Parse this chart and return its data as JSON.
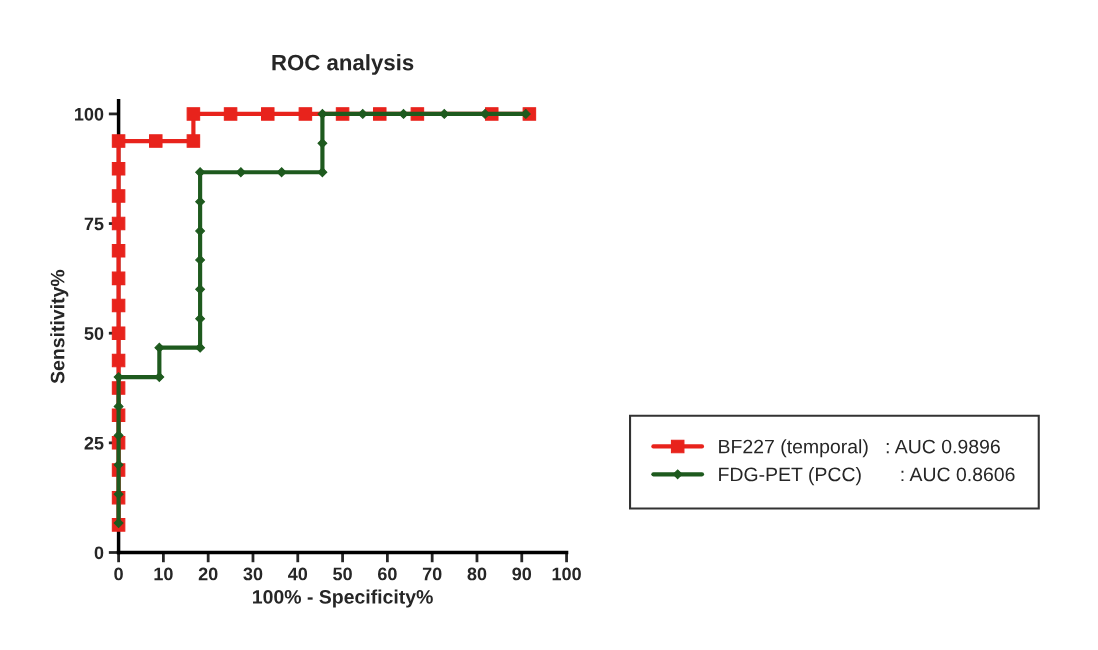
{
  "chart_data": {
    "type": "line",
    "title": "ROC analysis",
    "xlabel": "100% - Specificity%",
    "ylabel": "Sensitivity%",
    "xlim": [
      0,
      100
    ],
    "xticks": [
      0,
      10,
      20,
      30,
      40,
      50,
      60,
      70,
      80,
      90,
      100
    ],
    "ylim": [
      0,
      103
    ],
    "yticks": [
      0,
      25,
      50,
      75,
      100
    ],
    "grid": false,
    "legend": "right",
    "series": [
      {
        "name": "BF227 (temporal)   : AUC 0.9896",
        "color": "#e8231c",
        "marker": "square",
        "x": [
          0,
          0,
          0,
          0,
          0,
          0,
          0,
          0,
          0,
          0,
          0,
          0,
          0,
          0,
          0,
          8.3,
          16.7,
          16.7,
          25,
          33.3,
          41.7,
          50,
          58.3,
          66.7,
          83.3,
          91.7
        ],
        "values": [
          6.3,
          12.5,
          18.8,
          25,
          31.3,
          37.5,
          43.8,
          50,
          56.3,
          62.5,
          68.8,
          75,
          81.3,
          87.5,
          93.8,
          93.8,
          93.8,
          100,
          100,
          100,
          100,
          100,
          100,
          100,
          100,
          100
        ]
      },
      {
        "name": "FDG-PET (PCC)       : AUC 0.8606",
        "color": "#1e5a1e",
        "marker": "diamond",
        "x": [
          0,
          0,
          0,
          0,
          0,
          0,
          9.1,
          9.1,
          18.2,
          18.2,
          18.2,
          18.2,
          18.2,
          18.2,
          18.2,
          27.3,
          36.4,
          45.5,
          45.5,
          45.5,
          54.5,
          63.6,
          72.7,
          81.8,
          90.9
        ],
        "values": [
          6.7,
          13.3,
          20,
          26.7,
          33.3,
          40,
          40,
          46.7,
          46.7,
          53.3,
          60,
          66.7,
          73.3,
          80,
          86.7,
          86.7,
          86.7,
          86.7,
          93.3,
          100,
          100,
          100,
          100,
          100,
          100
        ]
      }
    ]
  }
}
